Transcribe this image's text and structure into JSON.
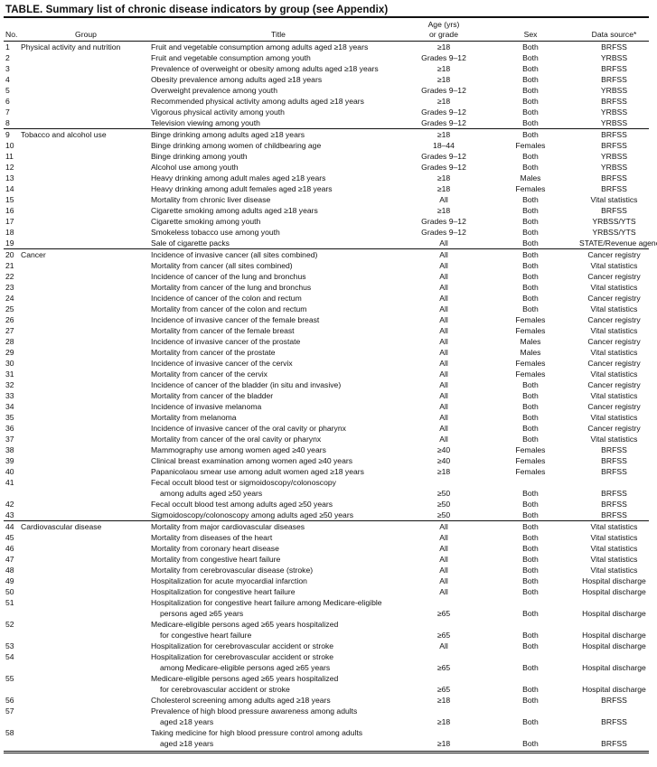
{
  "caption": "TABLE. Summary list of chronic disease indicators by group (see Appendix)",
  "headers": {
    "no": "No.",
    "group": "Group",
    "title": "Title",
    "age_line1": "Age (yrs)",
    "age_line2": "or grade",
    "sex": "Sex",
    "source": "Data source*"
  },
  "rows": [
    {
      "no": "1",
      "group": "Physical activity and nutrition",
      "title": [
        "Fruit and vegetable consumption among adults aged ≥18 years"
      ],
      "age": "≥18",
      "sex": "Both",
      "source": "BRFSS"
    },
    {
      "no": "2",
      "group": "",
      "title": [
        "Fruit and vegetable consumption among youth"
      ],
      "age": "Grades 9–12",
      "sex": "Both",
      "source": "YRBSS"
    },
    {
      "no": "3",
      "group": "",
      "title": [
        "Prevalence of overweight or obesity among adults aged ≥18 years"
      ],
      "age": "≥18",
      "sex": "Both",
      "source": "BRFSS"
    },
    {
      "no": "4",
      "group": "",
      "title": [
        "Obesity prevalence among adults aged ≥18 years"
      ],
      "age": "≥18",
      "sex": "Both",
      "source": "BRFSS"
    },
    {
      "no": "5",
      "group": "",
      "title": [
        "Overweight prevalence among youth"
      ],
      "age": "Grades 9–12",
      "sex": "Both",
      "source": "YRBSS"
    },
    {
      "no": "6",
      "group": "",
      "title": [
        "Recommended physical activity among adults aged ≥18 years"
      ],
      "age": "≥18",
      "sex": "Both",
      "source": "BRFSS"
    },
    {
      "no": "7",
      "group": "",
      "title": [
        "Vigorous physical activity among youth"
      ],
      "age": "Grades 9–12",
      "sex": "Both",
      "source": "YRBSS"
    },
    {
      "no": "8",
      "group": "",
      "title": [
        "Television viewing among youth"
      ],
      "age": "Grades 9–12",
      "sex": "Both",
      "source": "YRBSS"
    },
    {
      "no": "9",
      "group": "Tobacco and alcohol use",
      "title": [
        "Binge drinking among adults aged ≥18 years"
      ],
      "age": "≥18",
      "sex": "Both",
      "source": "BRFSS"
    },
    {
      "no": "10",
      "group": "",
      "title": [
        "Binge drinking among women of childbearing age"
      ],
      "age": "18–44",
      "sex": "Females",
      "source": "BRFSS"
    },
    {
      "no": "11",
      "group": "",
      "title": [
        "Binge drinking among youth"
      ],
      "age": "Grades 9–12",
      "sex": "Both",
      "source": "YRBSS"
    },
    {
      "no": "12",
      "group": "",
      "title": [
        "Alcohol use among youth"
      ],
      "age": "Grades 9–12",
      "sex": "Both",
      "source": "YRBSS"
    },
    {
      "no": "13",
      "group": "",
      "title": [
        "Heavy drinking among adult males aged ≥18 years"
      ],
      "age": "≥18",
      "sex": "Males",
      "source": "BRFSS"
    },
    {
      "no": "14",
      "group": "",
      "title": [
        "Heavy drinking among adult females aged ≥18 years"
      ],
      "age": "≥18",
      "sex": "Females",
      "source": "BRFSS"
    },
    {
      "no": "15",
      "group": "",
      "title": [
        "Mortality from chronic liver disease"
      ],
      "age": "All",
      "sex": "Both",
      "source": "Vital statistics"
    },
    {
      "no": "16",
      "group": "",
      "title": [
        "Cigarette smoking among adults aged ≥18 years"
      ],
      "age": "≥18",
      "sex": "Both",
      "source": "BRFSS"
    },
    {
      "no": "17",
      "group": "",
      "title": [
        "Cigarette smoking among youth"
      ],
      "age": "Grades 9–12",
      "sex": "Both",
      "source": "YRBSS/YTS"
    },
    {
      "no": "18",
      "group": "",
      "title": [
        "Smokeless tobacco use among youth"
      ],
      "age": "Grades 9–12",
      "sex": "Both",
      "source": "YRBSS/YTS"
    },
    {
      "no": "19",
      "group": "",
      "title": [
        "Sale of cigarette packs"
      ],
      "age": "All",
      "sex": "Both",
      "source": "STATE/Revenue agency"
    },
    {
      "no": "20",
      "group": "Cancer",
      "title": [
        "Incidence of invasive cancer (all sites combined)"
      ],
      "age": "All",
      "sex": "Both",
      "source": "Cancer registry"
    },
    {
      "no": "21",
      "group": "",
      "title": [
        "Mortality from cancer (all sites combined)"
      ],
      "age": "All",
      "sex": "Both",
      "source": "Vital statistics"
    },
    {
      "no": "22",
      "group": "",
      "title": [
        "Incidence of cancer of the lung and bronchus"
      ],
      "age": "All",
      "sex": "Both",
      "source": "Cancer registry"
    },
    {
      "no": "23",
      "group": "",
      "title": [
        "Mortality from cancer of the lung and bronchus"
      ],
      "age": "All",
      "sex": "Both",
      "source": "Vital statistics"
    },
    {
      "no": "24",
      "group": "",
      "title": [
        "Incidence of cancer of the colon and rectum"
      ],
      "age": "All",
      "sex": "Both",
      "source": "Cancer registry"
    },
    {
      "no": "25",
      "group": "",
      "title": [
        "Mortality from cancer of the colon and rectum"
      ],
      "age": "All",
      "sex": "Both",
      "source": "Vital statistics"
    },
    {
      "no": "26",
      "group": "",
      "title": [
        "Incidence of invasive cancer of the female breast"
      ],
      "age": "All",
      "sex": "Females",
      "source": "Cancer registry"
    },
    {
      "no": "27",
      "group": "",
      "title": [
        "Mortality from cancer of the female breast"
      ],
      "age": "All",
      "sex": "Females",
      "source": "Vital statistics"
    },
    {
      "no": "28",
      "group": "",
      "title": [
        "Incidence of invasive cancer of the prostate"
      ],
      "age": "All",
      "sex": "Males",
      "source": "Cancer registry"
    },
    {
      "no": "29",
      "group": "",
      "title": [
        "Mortality from cancer of the prostate"
      ],
      "age": "All",
      "sex": "Males",
      "source": "Vital statistics"
    },
    {
      "no": "30",
      "group": "",
      "title": [
        "Incidence of invasive cancer of the cervix"
      ],
      "age": "All",
      "sex": "Females",
      "source": "Cancer registry"
    },
    {
      "no": "31",
      "group": "",
      "title": [
        "Mortality from cancer of the cervix"
      ],
      "age": "All",
      "sex": "Females",
      "source": "Vital statistics"
    },
    {
      "no": "32",
      "group": "",
      "title": [
        "Incidence of cancer of the bladder (in situ and invasive)"
      ],
      "age": "All",
      "sex": "Both",
      "source": "Cancer registry"
    },
    {
      "no": "33",
      "group": "",
      "title": [
        "Mortality from cancer of the bladder"
      ],
      "age": "All",
      "sex": "Both",
      "source": "Vital statistics"
    },
    {
      "no": "34",
      "group": "",
      "title": [
        "Incidence of invasive melanoma"
      ],
      "age": "All",
      "sex": "Both",
      "source": "Cancer registry"
    },
    {
      "no": "35",
      "group": "",
      "title": [
        "Mortality from melanoma"
      ],
      "age": "All",
      "sex": "Both",
      "source": "Vital statistics"
    },
    {
      "no": "36",
      "group": "",
      "title": [
        "Incidence of invasive cancer of the oral cavity or pharynx"
      ],
      "age": "All",
      "sex": "Both",
      "source": "Cancer registry"
    },
    {
      "no": "37",
      "group": "",
      "title": [
        "Mortality from cancer of the oral cavity or pharynx"
      ],
      "age": "All",
      "sex": "Both",
      "source": "Vital statistics"
    },
    {
      "no": "38",
      "group": "",
      "title": [
        "Mammography use among women aged ≥40 years"
      ],
      "age": "≥40",
      "sex": "Females",
      "source": "BRFSS"
    },
    {
      "no": "39",
      "group": "",
      "title": [
        "Clinical breast examination among women aged ≥40 years"
      ],
      "age": "≥40",
      "sex": "Females",
      "source": "BRFSS"
    },
    {
      "no": "40",
      "group": "",
      "title": [
        "Papanicolaou smear use among adult women aged ≥18 years"
      ],
      "age": "≥18",
      "sex": "Females",
      "source": "BRFSS"
    },
    {
      "no": "41",
      "group": "",
      "title": [
        "Fecal occult blood test or sigmoidoscopy/colonoscopy",
        "among adults aged ≥50 years"
      ],
      "age": "≥50",
      "sex": "Both",
      "source": "BRFSS"
    },
    {
      "no": "42",
      "group": "",
      "title": [
        "Fecal occult blood test among adults aged ≥50 years"
      ],
      "age": "≥50",
      "sex": "Both",
      "source": "BRFSS"
    },
    {
      "no": "43",
      "group": "",
      "title": [
        "Sigmoidoscopy/colonoscopy among adults aged ≥50 years"
      ],
      "age": "≥50",
      "sex": "Both",
      "source": "BRFSS"
    },
    {
      "no": "44",
      "group": "Cardiovascular disease",
      "title": [
        "Mortality from major cardiovascular diseases"
      ],
      "age": "All",
      "sex": "Both",
      "source": "Vital statistics"
    },
    {
      "no": "45",
      "group": "",
      "title": [
        "Mortality from diseases of the heart"
      ],
      "age": "All",
      "sex": "Both",
      "source": "Vital statistics"
    },
    {
      "no": "46",
      "group": "",
      "title": [
        "Mortality from coronary heart disease"
      ],
      "age": "All",
      "sex": "Both",
      "source": "Vital statistics"
    },
    {
      "no": "47",
      "group": "",
      "title": [
        "Mortality from congestive heart failure"
      ],
      "age": "All",
      "sex": "Both",
      "source": "Vital statistics"
    },
    {
      "no": "48",
      "group": "",
      "title": [
        "Mortality from cerebrovascular disease (stroke)"
      ],
      "age": "All",
      "sex": "Both",
      "source": "Vital statistics"
    },
    {
      "no": "49",
      "group": "",
      "title": [
        "Hospitalization for acute myocardial infarction"
      ],
      "age": "All",
      "sex": "Both",
      "source": "Hospital discharge"
    },
    {
      "no": "50",
      "group": "",
      "title": [
        "Hospitalization for congestive heart failure"
      ],
      "age": "All",
      "sex": "Both",
      "source": "Hospital discharge"
    },
    {
      "no": "51",
      "group": "",
      "title": [
        "Hospitalization for congestive heart failure among Medicare-eligible",
        "persons aged ≥65 years"
      ],
      "age": "≥65",
      "sex": "Both",
      "source": "Hospital discharge"
    },
    {
      "no": "52",
      "group": "",
      "title": [
        "Medicare-eligible persons aged ≥65 years hospitalized",
        "for congestive heart failure"
      ],
      "age": "≥65",
      "sex": "Both",
      "source": "Hospital discharge"
    },
    {
      "no": "53",
      "group": "",
      "title": [
        "Hospitalization for cerebrovascular accident or stroke"
      ],
      "age": "All",
      "sex": "Both",
      "source": "Hospital discharge"
    },
    {
      "no": "54",
      "group": "",
      "title": [
        "Hospitalization for cerebrovascular accident or stroke",
        "among Medicare-eligible persons aged ≥65 years"
      ],
      "age": "≥65",
      "sex": "Both",
      "source": "Hospital discharge"
    },
    {
      "no": "55",
      "group": "",
      "title": [
        "Medicare-eligible persons aged ≥65 years hospitalized",
        "for cerebrovascular accident or stroke"
      ],
      "age": "≥65",
      "sex": "Both",
      "source": "Hospital discharge"
    },
    {
      "no": "56",
      "group": "",
      "title": [
        "Cholesterol screening among adults aged ≥18 years"
      ],
      "age": "≥18",
      "sex": "Both",
      "source": "BRFSS"
    },
    {
      "no": "57",
      "group": "",
      "title": [
        "Prevalence of high blood pressure awareness among adults",
        "aged ≥18 years"
      ],
      "age": "≥18",
      "sex": "Both",
      "source": "BRFSS"
    },
    {
      "no": "58",
      "group": "",
      "title": [
        "Taking medicine for high blood pressure control among adults",
        "aged ≥18 years"
      ],
      "age": "≥18",
      "sex": "Both",
      "source": "BRFSS"
    }
  ]
}
